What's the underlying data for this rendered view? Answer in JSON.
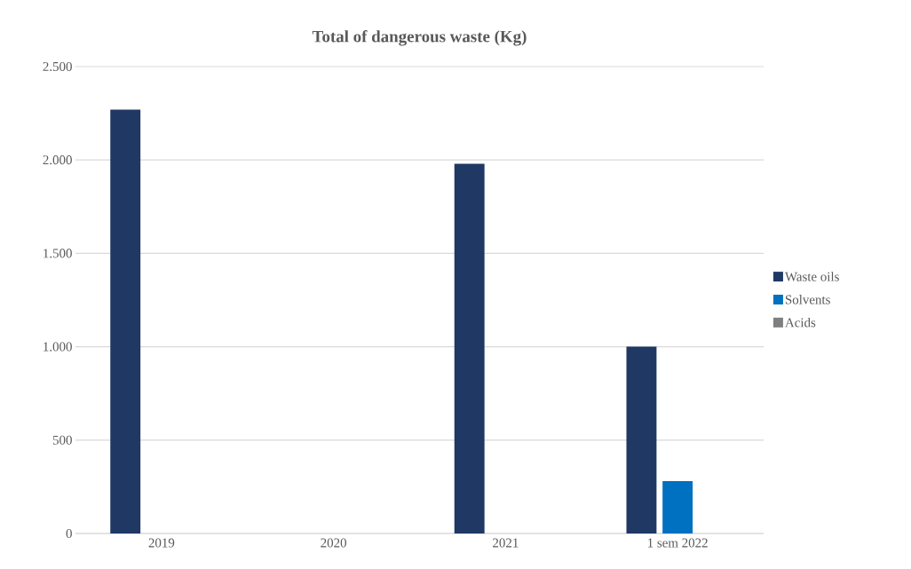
{
  "chart_data": {
    "type": "bar",
    "title": "Total of dangerous waste (Kg)",
    "categories": [
      "2019",
      "2020",
      "2021",
      "1 sem 2022"
    ],
    "series": [
      {
        "name": "Waste oils",
        "color": "#1f3864",
        "values": [
          2270,
          null,
          1980,
          1000
        ]
      },
      {
        "name": "Solvents",
        "color": "#0070c0",
        "values": [
          null,
          null,
          null,
          280
        ]
      },
      {
        "name": "Acids",
        "color": "#7f7f7f",
        "values": [
          null,
          null,
          null,
          null
        ]
      }
    ],
    "ylim": [
      0,
      2500
    ],
    "yticks": [
      {
        "value": 0,
        "label": "0"
      },
      {
        "value": 500,
        "label": "500"
      },
      {
        "value": 1000,
        "label": "1.000"
      },
      {
        "value": 1500,
        "label": "1.500"
      },
      {
        "value": 2000,
        "label": "2.000"
      },
      {
        "value": 2500,
        "label": "2.500"
      }
    ],
    "grid": "y",
    "legend": "right"
  }
}
